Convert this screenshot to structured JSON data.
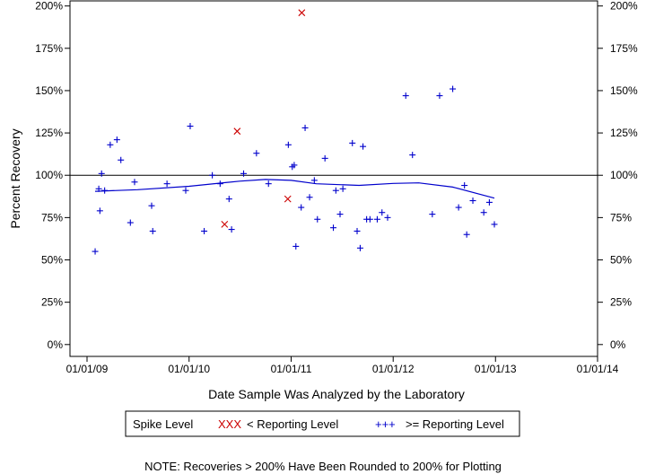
{
  "chart_data": {
    "type": "scatter",
    "xlabel": "Date Sample Was Analyzed by the Laboratory",
    "ylabel": "Percent Recovery",
    "x_ticks": [
      "01/01/09",
      "01/01/10",
      "01/01/11",
      "01/01/12",
      "01/01/13",
      "01/01/14"
    ],
    "x_range": [
      "2008-11-01",
      "2014-01-01"
    ],
    "y_ticks": [
      "0%",
      "25%",
      "50%",
      "75%",
      "100%",
      "125%",
      "150%",
      "175%",
      "200%"
    ],
    "ylim": [
      -7,
      203
    ],
    "reference_line": 100,
    "grid": false,
    "legend": {
      "title": "Spike Level",
      "placement": "bottom",
      "entries": [
        {
          "symbol": "XXX",
          "label": "< Reporting Level",
          "color": "#cc0000"
        },
        {
          "symbol": "+++",
          "label": ">= Reporting Level",
          "color": "#0000cc"
        }
      ]
    },
    "note": "NOTE: Recoveries > 200% Have Been Rounded to 200% for Plotting",
    "series": [
      {
        "marker": "x",
        "color": "#cc0000",
        "points": [
          {
            "x": "2010-06-22",
            "y": 126
          },
          {
            "x": "2010-05-08",
            "y": 71
          },
          {
            "x": "2010-12-20",
            "y": 86
          },
          {
            "x": "2011-02-08",
            "y": 196
          }
        ]
      },
      {
        "marker": "+",
        "color": "#0000cc",
        "points": [
          {
            "x": "2009-01-30",
            "y": 55
          },
          {
            "x": "2009-02-12",
            "y": 92
          },
          {
            "x": "2009-02-16",
            "y": 79
          },
          {
            "x": "2009-02-22",
            "y": 101
          },
          {
            "x": "2009-03-05",
            "y": 91
          },
          {
            "x": "2009-03-25",
            "y": 118
          },
          {
            "x": "2009-04-18",
            "y": 121
          },
          {
            "x": "2009-05-02",
            "y": 109
          },
          {
            "x": "2009-06-05",
            "y": 72
          },
          {
            "x": "2009-06-20",
            "y": 96
          },
          {
            "x": "2009-08-20",
            "y": 82
          },
          {
            "x": "2009-08-24",
            "y": 67
          },
          {
            "x": "2009-10-14",
            "y": 95
          },
          {
            "x": "2009-12-20",
            "y": 91
          },
          {
            "x": "2010-01-05",
            "y": 129
          },
          {
            "x": "2010-02-24",
            "y": 67
          },
          {
            "x": "2010-03-25",
            "y": 100
          },
          {
            "x": "2010-04-22",
            "y": 95
          },
          {
            "x": "2010-05-24",
            "y": 86
          },
          {
            "x": "2010-06-02",
            "y": 68
          },
          {
            "x": "2010-07-15",
            "y": 101
          },
          {
            "x": "2010-08-30",
            "y": 113
          },
          {
            "x": "2010-10-12",
            "y": 95
          },
          {
            "x": "2010-12-22",
            "y": 118
          },
          {
            "x": "2011-01-05",
            "y": 105
          },
          {
            "x": "2011-01-12",
            "y": 106
          },
          {
            "x": "2011-01-18",
            "y": 58
          },
          {
            "x": "2011-02-06",
            "y": 81
          },
          {
            "x": "2011-02-20",
            "y": 128
          },
          {
            "x": "2011-03-08",
            "y": 87
          },
          {
            "x": "2011-03-25",
            "y": 97
          },
          {
            "x": "2011-04-05",
            "y": 74
          },
          {
            "x": "2011-05-02",
            "y": 110
          },
          {
            "x": "2011-06-01",
            "y": 69
          },
          {
            "x": "2011-06-10",
            "y": 91
          },
          {
            "x": "2011-06-25",
            "y": 77
          },
          {
            "x": "2011-07-05",
            "y": 92
          },
          {
            "x": "2011-08-08",
            "y": 119
          },
          {
            "x": "2011-08-25",
            "y": 67
          },
          {
            "x": "2011-09-05",
            "y": 57
          },
          {
            "x": "2011-09-15",
            "y": 117
          },
          {
            "x": "2011-09-28",
            "y": 74
          },
          {
            "x": "2011-10-10",
            "y": 74
          },
          {
            "x": "2011-11-05",
            "y": 74
          },
          {
            "x": "2011-11-22",
            "y": 78
          },
          {
            "x": "2011-12-12",
            "y": 75
          },
          {
            "x": "2012-02-15",
            "y": 147
          },
          {
            "x": "2012-03-10",
            "y": 112
          },
          {
            "x": "2012-05-20",
            "y": 77
          },
          {
            "x": "2012-06-15",
            "y": 147
          },
          {
            "x": "2012-08-01",
            "y": 151
          },
          {
            "x": "2012-08-22",
            "y": 81
          },
          {
            "x": "2012-09-12",
            "y": 94
          },
          {
            "x": "2012-09-20",
            "y": 65
          },
          {
            "x": "2012-10-12",
            "y": 85
          },
          {
            "x": "2012-11-20",
            "y": 78
          },
          {
            "x": "2012-12-10",
            "y": 84
          },
          {
            "x": "2012-12-28",
            "y": 71
          }
        ]
      },
      {
        "type": "smooth",
        "color": "#0000cc",
        "points": [
          {
            "x": "2009-01-30",
            "y": 90.5
          },
          {
            "x": "2009-07-01",
            "y": 91.5
          },
          {
            "x": "2010-01-01",
            "y": 93.5
          },
          {
            "x": "2010-07-01",
            "y": 96.5
          },
          {
            "x": "2010-10-01",
            "y": 97.5
          },
          {
            "x": "2011-01-01",
            "y": 97
          },
          {
            "x": "2011-04-01",
            "y": 95
          },
          {
            "x": "2011-09-01",
            "y": 94
          },
          {
            "x": "2012-01-01",
            "y": 95.2
          },
          {
            "x": "2012-04-01",
            "y": 95.5
          },
          {
            "x": "2012-08-01",
            "y": 93
          },
          {
            "x": "2012-12-28",
            "y": 86.5
          }
        ]
      }
    ]
  }
}
